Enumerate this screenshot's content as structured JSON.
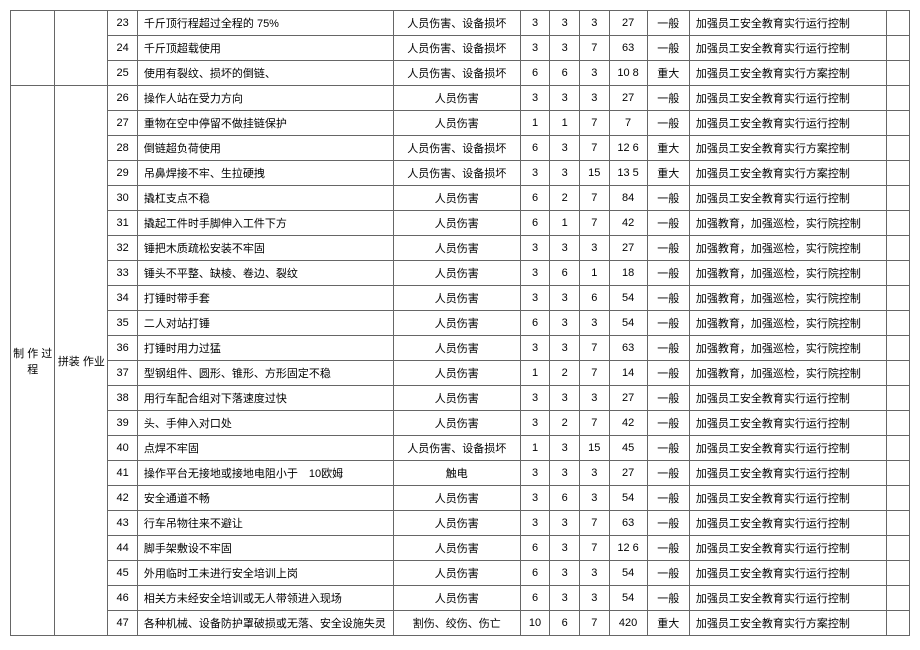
{
  "category1": "制 作 过程",
  "category2": "拼装 作业",
  "rows": [
    {
      "n": "23",
      "desc": "千斤顶行程超过全程的 75%",
      "haz": "人员伤害、设备损坏",
      "c1": "3",
      "c2": "3",
      "c3": "3",
      "c4": "27",
      "lvl": "一般",
      "meas": "加强员工安全教育实行运行控制"
    },
    {
      "n": "24",
      "desc": "千斤顶超载使用",
      "haz": "人员伤害、设备损坏",
      "c1": "3",
      "c2": "3",
      "c3": "7",
      "c4": "63",
      "lvl": "一般",
      "meas": "加强员工安全教育实行运行控制"
    },
    {
      "n": "25",
      "desc": "使用有裂纹、损坏的倒链、",
      "haz": "人员伤害、设备损坏",
      "c1": "6",
      "c2": "6",
      "c3": "3",
      "c4": "10 8",
      "lvl": "重大",
      "meas": "加强员工安全教育实行方案控制"
    },
    {
      "n": "26",
      "desc": "操作人站在受力方向",
      "haz": "人员伤害",
      "c1": "3",
      "c2": "3",
      "c3": "3",
      "c4": "27",
      "lvl": "一般",
      "meas": "加强员工安全教育实行运行控制"
    },
    {
      "n": "27",
      "desc": "重物在空中停留不做挂链保护",
      "haz": "人员伤害",
      "c1": "1",
      "c2": "1",
      "c3": "7",
      "c4": "7",
      "lvl": "一般",
      "meas": "加强员工安全教育实行运行控制"
    },
    {
      "n": "28",
      "desc": "倒链超负荷使用",
      "haz": "人员伤害、设备损坏",
      "c1": "6",
      "c2": "3",
      "c3": "7",
      "c4": "12 6",
      "lvl": "重大",
      "meas": "加强员工安全教育实行方案控制"
    },
    {
      "n": "29",
      "desc": "吊鼻焊接不牢、生拉硬拽",
      "haz": "人员伤害、设备损坏",
      "c1": "3",
      "c2": "3",
      "c3": "15",
      "c4": "13 5",
      "lvl": "重大",
      "meas": "加强员工安全教育实行方案控制"
    },
    {
      "n": "30",
      "desc": "撬杠支点不稳",
      "haz": "人员伤害",
      "c1": "6",
      "c2": "2",
      "c3": "7",
      "c4": "84",
      "lvl": "一般",
      "meas": "加强员工安全教育实行运行控制"
    },
    {
      "n": "31",
      "desc": "撬起工件时手脚伸入工件下方",
      "haz": "人员伤害",
      "c1": "6",
      "c2": "1",
      "c3": "7",
      "c4": "42",
      "lvl": "一般",
      "meas": "加强教育，加强巡检，实行院控制"
    },
    {
      "n": "32",
      "desc": "锤把木质疏松安装不牢固",
      "haz": "人员伤害",
      "c1": "3",
      "c2": "3",
      "c3": "3",
      "c4": "27",
      "lvl": "一般",
      "meas": "加强教育，加强巡检，实行院控制"
    },
    {
      "n": "33",
      "desc": "锤头不平整、缺棱、卷边、裂纹",
      "haz": "人员伤害",
      "c1": "3",
      "c2": "6",
      "c3": "1",
      "c4": "18",
      "lvl": "一般",
      "meas": "加强教育，加强巡检，实行院控制"
    },
    {
      "n": "34",
      "desc": "打锤时带手套",
      "haz": "人员伤害",
      "c1": "3",
      "c2": "3",
      "c3": "6",
      "c4": "54",
      "lvl": "一般",
      "meas": "加强教育，加强巡检，实行院控制"
    },
    {
      "n": "35",
      "desc": "二人对站打锤",
      "haz": "人员伤害",
      "c1": "6",
      "c2": "3",
      "c3": "3",
      "c4": "54",
      "lvl": "一般",
      "meas": "加强教育，加强巡检，实行院控制"
    },
    {
      "n": "36",
      "desc": "打锤时用力过猛",
      "haz": "人员伤害",
      "c1": "3",
      "c2": "3",
      "c3": "7",
      "c4": "63",
      "lvl": "一般",
      "meas": "加强教育，加强巡检，实行院控制"
    },
    {
      "n": "37",
      "desc": "型钢组件、圆形、锥形、方形固定不稳",
      "haz": "人员伤害",
      "c1": "1",
      "c2": "2",
      "c3": "7",
      "c4": "14",
      "lvl": "一般",
      "meas": "加强教育，加强巡检，实行院控制"
    },
    {
      "n": "38",
      "desc": "用行车配合组对下落速度过快",
      "haz": "人员伤害",
      "c1": "3",
      "c2": "3",
      "c3": "3",
      "c4": "27",
      "lvl": "一般",
      "meas": "加强员工安全教育实行运行控制"
    },
    {
      "n": "39",
      "desc": "头、手伸入对口处",
      "haz": "人员伤害",
      "c1": "3",
      "c2": "2",
      "c3": "7",
      "c4": "42",
      "lvl": "一般",
      "meas": "加强员工安全教育实行运行控制"
    },
    {
      "n": "40",
      "desc": "点焊不牢固",
      "haz": "人员伤害、设备损坏",
      "c1": "1",
      "c2": "3",
      "c3": "15",
      "c4": "45",
      "lvl": "一般",
      "meas": "加强员工安全教育实行运行控制"
    },
    {
      "n": "41",
      "desc": "操作平台无接地或接地电阻小于　10欧姆",
      "haz": "触电",
      "c1": "3",
      "c2": "3",
      "c3": "3",
      "c4": "27",
      "lvl": "一般",
      "meas": "加强员工安全教育实行运行控制"
    },
    {
      "n": "42",
      "desc": "安全通道不畅",
      "haz": "人员伤害",
      "c1": "3",
      "c2": "6",
      "c3": "3",
      "c4": "54",
      "lvl": "一般",
      "meas": "加强员工安全教育实行运行控制"
    },
    {
      "n": "43",
      "desc": "行车吊物往来不避让",
      "haz": "人员伤害",
      "c1": "3",
      "c2": "3",
      "c3": "7",
      "c4": "63",
      "lvl": "一般",
      "meas": "加强员工安全教育实行运行控制"
    },
    {
      "n": "44",
      "desc": "脚手架敷设不牢固",
      "haz": "人员伤害",
      "c1": "6",
      "c2": "3",
      "c3": "7",
      "c4": "12 6",
      "lvl": "一般",
      "meas": "加强员工安全教育实行运行控制"
    },
    {
      "n": "45",
      "desc": "外用临时工未进行安全培训上岗",
      "haz": "人员伤害",
      "c1": "6",
      "c2": "3",
      "c3": "3",
      "c4": "54",
      "lvl": "一般",
      "meas": "加强员工安全教育实行运行控制"
    },
    {
      "n": "46",
      "desc": "相关方未经安全培训或无人带领进入现场",
      "haz": "人员伤害",
      "c1": "6",
      "c2": "3",
      "c3": "3",
      "c4": "54",
      "lvl": "一般",
      "meas": "加强员工安全教育实行运行控制"
    },
    {
      "n": "47",
      "desc": "各种机械、设备防护罩破损或无落、安全设施失灵",
      "haz": "割伤、绞伤、伤亡",
      "c1": "10",
      "c2": "6",
      "c3": "7",
      "c4": "420",
      "lvl": "重大",
      "meas": "加强员工安全教育实行方案控制"
    }
  ]
}
